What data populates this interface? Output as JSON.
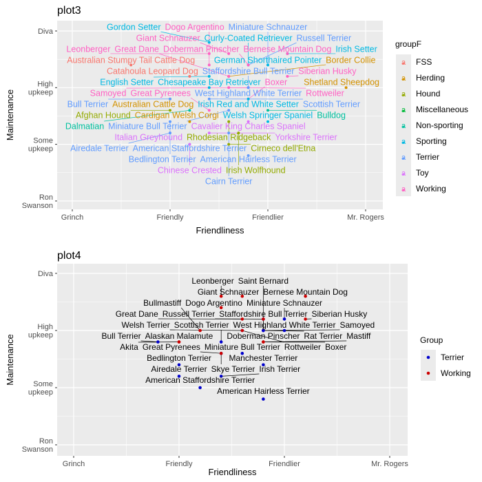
{
  "chart_data": [
    {
      "type": "scatter",
      "title": "plot3",
      "xlabel": "Friendliness",
      "ylabel": "Maintenance",
      "x_ticks": [
        "Grinch",
        "Friendly",
        "Friendlier",
        "Mr. Rogers"
      ],
      "y_ticks": [
        "Ron Swanson",
        "Some upkeep",
        "High upkeep",
        "Diva"
      ],
      "xlim": [
        0.85,
        4.2
      ],
      "ylim": [
        0.85,
        4.2
      ],
      "grid": true,
      "legend": {
        "title": "groupF",
        "position": "right"
      },
      "groups": [
        {
          "name": "FSS",
          "color": "#F8766D"
        },
        {
          "name": "Herding",
          "color": "#D39200"
        },
        {
          "name": "Hound",
          "color": "#93AA00"
        },
        {
          "name": "Miscellaneous",
          "color": "#00BA38"
        },
        {
          "name": "Non-sporting",
          "color": "#00C19F"
        },
        {
          "name": "Sporting",
          "color": "#00B9E3"
        },
        {
          "name": "Terrier",
          "color": "#619CFF"
        },
        {
          "name": "Toy",
          "color": "#DB72FB"
        },
        {
          "name": "Working",
          "color": "#FF61C3"
        }
      ],
      "points": [
        {
          "label": "Gordon Setter",
          "group": "Sporting",
          "x": 2.4,
          "y": 3.8
        },
        {
          "label": "Leonberger",
          "group": "Working",
          "x": 2.4,
          "y": 3.6
        },
        {
          "label": "Giant Schnauzer",
          "group": "Working",
          "x": 2.6,
          "y": 3.6
        },
        {
          "label": "Irish Setter",
          "group": "Sporting",
          "x": 3.2,
          "y": 3.6
        },
        {
          "label": "Bernese Mountain Dog",
          "group": "Working",
          "x": 3.2,
          "y": 3.6
        },
        {
          "label": "Australian Stumpy Tail Cattle Dog",
          "group": "FSS",
          "x": 1.6,
          "y": 3.4
        },
        {
          "label": "Dogo Argentino",
          "group": "Working",
          "x": 2.4,
          "y": 3.4
        },
        {
          "label": "Curly-Coated Retriever",
          "group": "Sporting",
          "x": 2.8,
          "y": 3.4
        },
        {
          "label": "Russell Terrier",
          "group": "Terrier",
          "x": 2.8,
          "y": 3.4
        },
        {
          "label": "Doberman Pinscher",
          "group": "Working",
          "x": 2.8,
          "y": 3.4
        },
        {
          "label": "Miniature Schnauzer",
          "group": "Terrier",
          "x": 3.0,
          "y": 3.4
        },
        {
          "label": "German Shorthaired Pointer",
          "group": "Sporting",
          "x": 3.0,
          "y": 3.4
        },
        {
          "label": "Catahoula Leopard Dog",
          "group": "FSS",
          "x": 2.2,
          "y": 3.2
        },
        {
          "label": "English Setter",
          "group": "Sporting",
          "x": 2.4,
          "y": 3.2
        },
        {
          "label": "Border Collie",
          "group": "Herding",
          "x": 2.6,
          "y": 3.2
        },
        {
          "label": "Great Dane",
          "group": "Working",
          "x": 2.6,
          "y": 3.2
        },
        {
          "label": "Siberian Husky",
          "group": "Working",
          "x": 3.2,
          "y": 3.2
        },
        {
          "label": "Chesapeake Bay Retriever",
          "group": "Sporting",
          "x": 2.4,
          "y": 3.0
        },
        {
          "label": "Rottweiler",
          "group": "Working",
          "x": 2.6,
          "y": 3.0
        },
        {
          "label": "Samoyed",
          "group": "Working",
          "x": 2.8,
          "y": 3.0
        },
        {
          "label": "Staffordshire Bull Terrier",
          "group": "Terrier",
          "x": 2.8,
          "y": 3.0
        },
        {
          "label": "West Highland White Terrier",
          "group": "Terrier",
          "x": 2.8,
          "y": 3.0
        },
        {
          "label": "Shetland Sheepdog",
          "group": "Herding",
          "x": 3.8,
          "y": 3.0
        },
        {
          "label": "Australian Cattle Dog",
          "group": "Herding",
          "x": 2.0,
          "y": 2.8
        },
        {
          "label": "Bull Terrier",
          "group": "Terrier",
          "x": 2.0,
          "y": 2.8
        },
        {
          "label": "Scottish Terrier",
          "group": "Terrier",
          "x": 2.4,
          "y": 2.8
        },
        {
          "label": "Boxer",
          "group": "Working",
          "x": 2.8,
          "y": 2.8
        },
        {
          "label": "Irish Red and White Setter",
          "group": "Sporting",
          "x": 2.8,
          "y": 2.8
        },
        {
          "label": "Afghan Hound",
          "group": "Hound",
          "x": 2.0,
          "y": 2.6
        },
        {
          "label": "Dalmatian",
          "group": "Non-sporting",
          "x": 2.2,
          "y": 2.6
        },
        {
          "label": "Great Pyrenees",
          "group": "Working",
          "x": 2.4,
          "y": 2.6
        },
        {
          "label": "Miniature Bull Terrier",
          "group": "Terrier",
          "x": 2.6,
          "y": 2.6
        },
        {
          "label": "Bulldog",
          "group": "Non-sporting",
          "x": 3.0,
          "y": 2.6
        },
        {
          "label": "Bedlington Terrier",
          "group": "Terrier",
          "x": 2.0,
          "y": 2.4
        },
        {
          "label": "Cardigan Welsh Corgi",
          "group": "Herding",
          "x": 2.2,
          "y": 2.4
        },
        {
          "label": "Rhodesian Ridgeback",
          "group": "Hound",
          "x": 2.6,
          "y": 2.4
        },
        {
          "label": "Cavalier King Charles Spaniel",
          "group": "Toy",
          "x": 2.8,
          "y": 2.4
        },
        {
          "label": "Welsh Springer Spaniel",
          "group": "Sporting",
          "x": 3.0,
          "y": 2.4
        },
        {
          "label": "Italian Greyhound",
          "group": "Toy",
          "x": 2.0,
          "y": 2.2
        },
        {
          "label": "Airedale Terrier",
          "group": "Terrier",
          "x": 2.0,
          "y": 2.2
        },
        {
          "label": "Yorkshire Terrier",
          "group": "Toy",
          "x": 2.4,
          "y": 2.2
        },
        {
          "label": "Cairn Terrier",
          "group": "Terrier",
          "x": 2.6,
          "y": 2.2
        },
        {
          "label": "Irish Wolfhound",
          "group": "Hound",
          "x": 2.7,
          "y": 2.2
        },
        {
          "label": "American Staffordshire Terrier",
          "group": "Terrier",
          "x": 2.2,
          "y": 2.0
        },
        {
          "label": "Chinese Crested",
          "group": "Toy",
          "x": 2.2,
          "y": 2.0
        },
        {
          "label": "Cirneco dell'Etna",
          "group": "Hound",
          "x": 2.6,
          "y": 2.0
        },
        {
          "label": "American Hairless Terrier",
          "group": "Terrier",
          "x": 2.8,
          "y": 1.8
        }
      ]
    },
    {
      "type": "scatter",
      "title": "plot4",
      "xlabel": "Friendliness",
      "ylabel": "Maintenance",
      "x_ticks": [
        "Grinch",
        "Friendly",
        "Friendlier",
        "Mr. Rogers"
      ],
      "y_ticks": [
        "Ron Swanson",
        "Some upkeep",
        "High upkeep",
        "Diva"
      ],
      "xlim": [
        0.84,
        4.17
      ],
      "ylim": [
        0.82,
        4.18
      ],
      "grid": true,
      "legend": {
        "title": "Group",
        "position": "right"
      },
      "groups": [
        {
          "name": "Terrier",
          "color": "#0000CC"
        },
        {
          "name": "Working",
          "color": "#CC0000"
        }
      ],
      "points": [
        {
          "label": "Leonberger",
          "group": "Working",
          "x": 2.4,
          "y": 3.6
        },
        {
          "label": "Giant Schnauzer",
          "group": "Working",
          "x": 2.6,
          "y": 3.6
        },
        {
          "label": "Bernese Mountain Dog",
          "group": "Working",
          "x": 3.2,
          "y": 3.6
        },
        {
          "label": "Dogo Argentino",
          "group": "Working",
          "x": 2.4,
          "y": 3.4
        },
        {
          "label": "Doberman Pinscher",
          "group": "Working",
          "x": 2.8,
          "y": 3.2
        },
        {
          "label": "Russell Terrier",
          "group": "Terrier",
          "x": 2.8,
          "y": 3.2
        },
        {
          "label": "Saint Bernard",
          "group": "Working",
          "x": 2.8,
          "y": 3.2
        },
        {
          "label": "Welsh Terrier",
          "group": "Terrier",
          "x": 2.6,
          "y": 3.0
        },
        {
          "label": "Great Dane",
          "group": "Working",
          "x": 2.6,
          "y": 3.2
        },
        {
          "label": "Miniature Schnauzer",
          "group": "Terrier",
          "x": 3.0,
          "y": 3.2
        },
        {
          "label": "Siberian Husky",
          "group": "Working",
          "x": 3.2,
          "y": 3.2
        },
        {
          "label": "Samoyed",
          "group": "Working",
          "x": 2.8,
          "y": 3.0
        },
        {
          "label": "West Highland White Terrier",
          "group": "Terrier",
          "x": 3.0,
          "y": 3.0
        },
        {
          "label": "Bullmastiff",
          "group": "Working",
          "x": 2.2,
          "y": 3.0
        },
        {
          "label": "Akita",
          "group": "Working",
          "x": 2.0,
          "y": 2.8
        },
        {
          "label": "Rottweiler",
          "group": "Working",
          "x": 2.6,
          "y": 3.0
        },
        {
          "label": "Staffordshire Bull Terrier",
          "group": "Terrier",
          "x": 2.8,
          "y": 3.0
        },
        {
          "label": "Boxer",
          "group": "Working",
          "x": 2.8,
          "y": 2.8
        },
        {
          "label": "Bull Terrier",
          "group": "Terrier",
          "x": 1.8,
          "y": 2.8
        },
        {
          "label": "Scottish Terrier",
          "group": "Terrier",
          "x": 2.4,
          "y": 2.8
        },
        {
          "label": "Skye Terrier",
          "group": "Terrier",
          "x": 2.4,
          "y": 2.6
        },
        {
          "label": "Mastiff",
          "group": "Working",
          "x": 2.8,
          "y": 2.8
        },
        {
          "label": "Rat Terrier",
          "group": "Terrier",
          "x": 2.8,
          "y": 3.0
        },
        {
          "label": "Alaskan Malamute",
          "group": "Working",
          "x": 2.0,
          "y": 2.8
        },
        {
          "label": "Miniature Bull Terrier",
          "group": "Terrier",
          "x": 2.6,
          "y": 2.6
        },
        {
          "label": "Great Pyrenees",
          "group": "Working",
          "x": 2.4,
          "y": 2.6
        },
        {
          "label": "Manchester Terrier",
          "group": "Terrier",
          "x": 2.8,
          "y": 2.4
        },
        {
          "label": "Bedlington Terrier",
          "group": "Terrier",
          "x": 2.0,
          "y": 2.4
        },
        {
          "label": "Airedale Terrier",
          "group": "Terrier",
          "x": 2.0,
          "y": 2.2
        },
        {
          "label": "Irish Terrier",
          "group": "Terrier",
          "x": 2.4,
          "y": 2.2
        },
        {
          "label": "American Staffordshire Terrier",
          "group": "Terrier",
          "x": 2.2,
          "y": 2.0
        },
        {
          "label": "American Hairless Terrier",
          "group": "Terrier",
          "x": 2.8,
          "y": 1.8
        }
      ]
    }
  ]
}
